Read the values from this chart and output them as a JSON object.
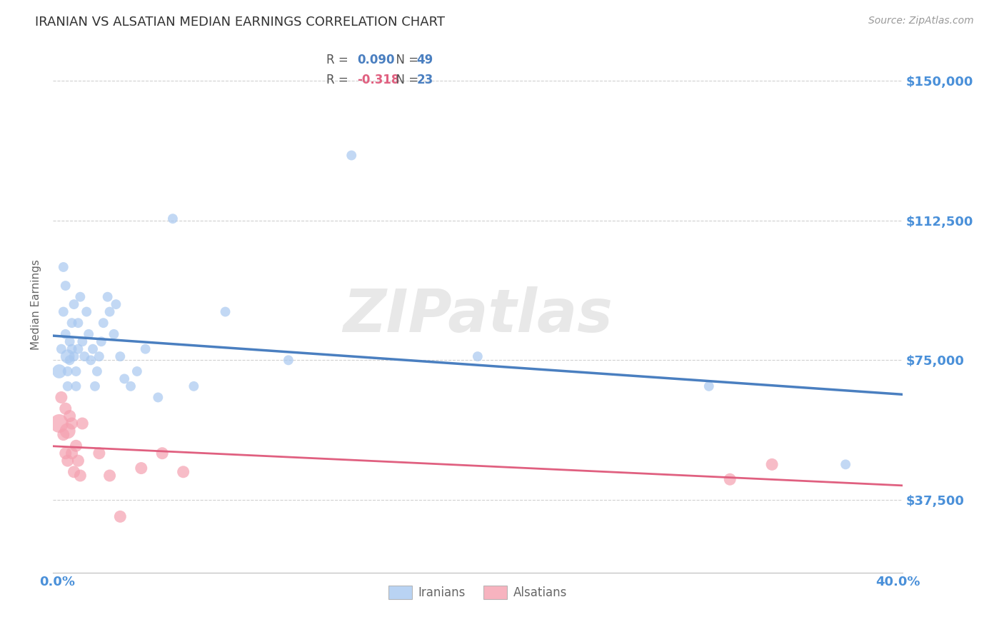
{
  "title": "IRANIAN VS ALSATIAN MEDIAN EARNINGS CORRELATION CHART",
  "source": "Source: ZipAtlas.com",
  "ylabel": "Median Earnings",
  "yticks": [
    37500,
    75000,
    112500,
    150000
  ],
  "ytick_labels": [
    "$37,500",
    "$75,000",
    "$112,500",
    "$150,000"
  ],
  "ylim": [
    18000,
    162000
  ],
  "xlim": [
    -0.002,
    0.402
  ],
  "iranian_R": "0.090",
  "iranian_N": "49",
  "alsatian_R": "-0.318",
  "alsatian_N": "23",
  "iranian_color": "#a8c8f0",
  "alsatian_color": "#f5a0b0",
  "iranian_line_color": "#4a7fc0",
  "alsatian_line_color": "#e06080",
  "watermark": "ZIPatlas",
  "iranian_x": [
    0.001,
    0.002,
    0.003,
    0.003,
    0.004,
    0.004,
    0.005,
    0.005,
    0.005,
    0.006,
    0.006,
    0.007,
    0.007,
    0.008,
    0.008,
    0.009,
    0.009,
    0.01,
    0.01,
    0.011,
    0.012,
    0.013,
    0.014,
    0.015,
    0.016,
    0.017,
    0.018,
    0.019,
    0.02,
    0.021,
    0.022,
    0.024,
    0.025,
    0.027,
    0.028,
    0.03,
    0.032,
    0.035,
    0.038,
    0.042,
    0.048,
    0.055,
    0.065,
    0.08,
    0.11,
    0.14,
    0.2,
    0.31,
    0.375
  ],
  "iranian_y": [
    72000,
    78000,
    100000,
    88000,
    95000,
    82000,
    76000,
    72000,
    68000,
    80000,
    75000,
    85000,
    78000,
    90000,
    76000,
    72000,
    68000,
    78000,
    85000,
    92000,
    80000,
    76000,
    88000,
    82000,
    75000,
    78000,
    68000,
    72000,
    76000,
    80000,
    85000,
    92000,
    88000,
    82000,
    90000,
    76000,
    70000,
    68000,
    72000,
    78000,
    65000,
    113000,
    68000,
    88000,
    75000,
    130000,
    76000,
    68000,
    47000
  ],
  "iranian_sizes": [
    200,
    100,
    100,
    100,
    100,
    100,
    200,
    100,
    100,
    100,
    100,
    100,
    100,
    100,
    100,
    100,
    100,
    100,
    100,
    100,
    100,
    100,
    100,
    100,
    100,
    100,
    100,
    100,
    100,
    100,
    100,
    100,
    100,
    100,
    100,
    100,
    100,
    100,
    100,
    100,
    100,
    100,
    100,
    100,
    100,
    100,
    100,
    100,
    100
  ],
  "alsatian_x": [
    0.001,
    0.002,
    0.003,
    0.004,
    0.004,
    0.005,
    0.005,
    0.006,
    0.007,
    0.007,
    0.008,
    0.009,
    0.01,
    0.011,
    0.012,
    0.02,
    0.025,
    0.03,
    0.04,
    0.05,
    0.06,
    0.32,
    0.34
  ],
  "alsatian_y": [
    58000,
    65000,
    55000,
    50000,
    62000,
    56000,
    48000,
    60000,
    50000,
    58000,
    45000,
    52000,
    48000,
    44000,
    58000,
    50000,
    44000,
    33000,
    46000,
    50000,
    45000,
    43000,
    47000
  ],
  "alsatian_sizes": [
    350,
    150,
    150,
    150,
    150,
    250,
    150,
    150,
    150,
    150,
    150,
    150,
    150,
    150,
    150,
    150,
    150,
    150,
    150,
    150,
    150,
    150,
    150
  ],
  "background_color": "#ffffff",
  "grid_color": "#d0d0d0",
  "tick_color": "#4a90d9",
  "title_color": "#333333"
}
